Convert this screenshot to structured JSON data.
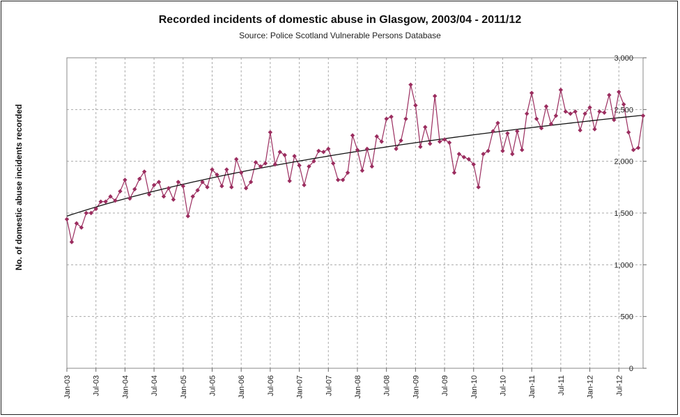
{
  "chart_data": {
    "type": "line",
    "title": "Recorded incidents of domestic abuse in Glasgow, 2003/04 - 2011/12",
    "subtitle": "Source: Police Scotland Vulnerable Persons Database",
    "ylabel": "No. of domestic abuse incidents recorded",
    "xlabel": "",
    "ylim": [
      0,
      3000
    ],
    "y_ticks": [
      0,
      500,
      1000,
      1500,
      2000,
      2500,
      3000
    ],
    "y_tick_labels": [
      "0",
      "500",
      "1,000",
      "1,500",
      "2,000",
      "2,500",
      "3,000"
    ],
    "y_axis_side": "right",
    "x_start": "Jan-03",
    "x_tick_labels": [
      "Jan-03",
      "Jul-03",
      "Jan-04",
      "Jul-04",
      "Jan-05",
      "Jul-05",
      "Jan-06",
      "Jul-06",
      "Jan-07",
      "Jul-07",
      "Jan-08",
      "Jul-08",
      "Jan-09",
      "Jul-09",
      "Jan-10",
      "Jul-10",
      "Jan-11",
      "Jul-11",
      "Jan-12",
      "Jul-12"
    ],
    "grid": true,
    "legend": "none",
    "series": [
      {
        "color": "#9b2d5f",
        "marker": "diamond",
        "values": [
          1440,
          1220,
          1400,
          1360,
          1500,
          1500,
          1540,
          1610,
          1610,
          1660,
          1620,
          1710,
          1820,
          1640,
          1730,
          1830,
          1900,
          1680,
          1770,
          1800,
          1660,
          1740,
          1630,
          1800,
          1760,
          1470,
          1660,
          1720,
          1800,
          1750,
          1920,
          1870,
          1760,
          1920,
          1750,
          2020,
          1890,
          1740,
          1800,
          1990,
          1950,
          1980,
          2280,
          1970,
          2090,
          2060,
          1810,
          2050,
          1960,
          1770,
          1950,
          2000,
          2100,
          2090,
          2120,
          1980,
          1820,
          1820,
          1890,
          2250,
          2110,
          1910,
          2120,
          1950,
          2240,
          2190,
          2410,
          2430,
          2120,
          2200,
          2410,
          2740,
          2540,
          2140,
          2330,
          2170,
          2630,
          2190,
          2210,
          2180,
          1890,
          2070,
          2040,
          2020,
          1970,
          1750,
          2070,
          2100,
          2290,
          2370,
          2100,
          2270,
          2070,
          2290,
          2110,
          2460,
          2660,
          2410,
          2320,
          2530,
          2360,
          2440,
          2690,
          2480,
          2460,
          2480,
          2300,
          2460,
          2520,
          2310,
          2480,
          2470,
          2640,
          2400,
          2670,
          2550,
          2280,
          2110,
          2130,
          2440
        ]
      },
      {
        "color": "#111111",
        "marker": "none",
        "trend": true,
        "values_at_ends": [
          1470,
          2445
        ]
      }
    ]
  }
}
